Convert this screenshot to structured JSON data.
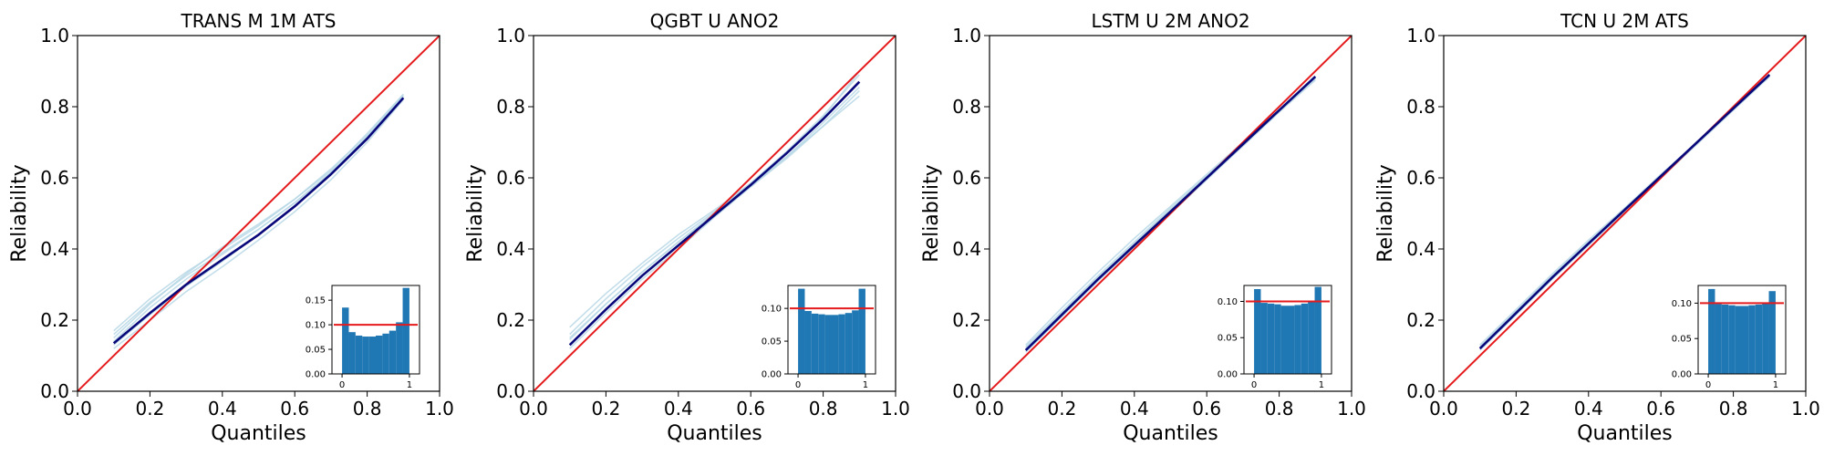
{
  "chart_data": [
    {
      "type": "line",
      "title": "TRANS M 1M ATS",
      "xlabel": "Quantiles",
      "ylabel": "Reliability",
      "xlim": [
        0,
        1
      ],
      "ylim": [
        0,
        1
      ],
      "xticks": [
        0.0,
        0.2,
        0.4,
        0.6,
        0.8,
        1.0
      ],
      "yticks": [
        0.0,
        0.2,
        0.4,
        0.6,
        0.8,
        1.0
      ],
      "xtick_labels": [
        "0.0",
        "0.2",
        "0.4",
        "0.6",
        "0.8",
        "1.0"
      ],
      "ytick_labels": [
        "0.0",
        "0.2",
        "0.4",
        "0.6",
        "0.8",
        "1.0"
      ],
      "diagonal": {
        "x": [
          0,
          1
        ],
        "y": [
          0,
          1
        ],
        "color": "#e41a1c"
      },
      "x": [
        0.1,
        0.2,
        0.3,
        0.4,
        0.5,
        0.6,
        0.7,
        0.8,
        0.9
      ],
      "series": [
        {
          "values": [
            0.135,
            0.22,
            0.3,
            0.37,
            0.44,
            0.52,
            0.61,
            0.71,
            0.825
          ],
          "color": "#08087a",
          "role": "mean"
        },
        {
          "values": [
            0.15,
            0.245,
            0.33,
            0.405,
            0.47,
            0.54,
            0.62,
            0.725,
            0.835
          ],
          "color": "#b9d8e6",
          "role": "run"
        },
        {
          "values": [
            0.16,
            0.25,
            0.325,
            0.39,
            0.455,
            0.53,
            0.615,
            0.715,
            0.83
          ],
          "color": "#b9d8e6",
          "role": "run"
        },
        {
          "values": [
            0.12,
            0.2,
            0.28,
            0.35,
            0.425,
            0.505,
            0.595,
            0.7,
            0.82
          ],
          "color": "#b9d8e6",
          "role": "run"
        },
        {
          "values": [
            0.14,
            0.235,
            0.315,
            0.385,
            0.455,
            0.53,
            0.615,
            0.715,
            0.83
          ],
          "color": "#b9d8e6",
          "role": "run"
        },
        {
          "values": [
            0.13,
            0.215,
            0.295,
            0.365,
            0.44,
            0.52,
            0.61,
            0.71,
            0.825
          ],
          "color": "#b9d8e6",
          "role": "run"
        },
        {
          "values": [
            0.17,
            0.26,
            0.335,
            0.4,
            0.465,
            0.54,
            0.625,
            0.72,
            0.835
          ],
          "color": "#b9d8e6",
          "role": "run"
        }
      ],
      "inset": {
        "type": "histogram",
        "bins": 10,
        "bar_color": "#1f77b4",
        "values": [
          0.135,
          0.085,
          0.078,
          0.076,
          0.076,
          0.078,
          0.082,
          0.088,
          0.105,
          0.175
        ],
        "ylim": [
          0,
          0.18
        ],
        "reference": 0.1,
        "yticks": [
          0.0,
          0.05,
          0.1,
          0.15
        ],
        "ytick_labels": [
          "0.00",
          "0.05",
          "0.10",
          "0.15"
        ],
        "xticks": [
          0,
          1
        ],
        "xtick_labels": [
          "0",
          "1"
        ]
      }
    },
    {
      "type": "line",
      "title": "QGBT U ANO2",
      "xlabel": "Quantiles",
      "ylabel": "Reliability",
      "xlim": [
        0,
        1
      ],
      "ylim": [
        0,
        1
      ],
      "xticks": [
        0.0,
        0.2,
        0.4,
        0.6,
        0.8,
        1.0
      ],
      "yticks": [
        0.0,
        0.2,
        0.4,
        0.6,
        0.8,
        1.0
      ],
      "xtick_labels": [
        "0.0",
        "0.2",
        "0.4",
        "0.6",
        "0.8",
        "1.0"
      ],
      "ytick_labels": [
        "0.0",
        "0.2",
        "0.4",
        "0.6",
        "0.8",
        "1.0"
      ],
      "diagonal": {
        "x": [
          0,
          1
        ],
        "y": [
          0,
          1
        ],
        "color": "#e41a1c"
      },
      "x": [
        0.1,
        0.2,
        0.3,
        0.4,
        0.5,
        0.6,
        0.7,
        0.8,
        0.9
      ],
      "series": [
        {
          "values": [
            0.13,
            0.23,
            0.325,
            0.41,
            0.495,
            0.58,
            0.67,
            0.765,
            0.87
          ],
          "color": "#08087a",
          "role": "mean"
        },
        {
          "values": [
            0.16,
            0.26,
            0.35,
            0.43,
            0.505,
            0.585,
            0.675,
            0.775,
            0.89
          ],
          "color": "#b9d8e6",
          "role": "run"
        },
        {
          "values": [
            0.18,
            0.275,
            0.36,
            0.44,
            0.51,
            0.585,
            0.67,
            0.77,
            0.9
          ],
          "color": "#b9d8e6",
          "role": "run"
        },
        {
          "values": [
            0.145,
            0.245,
            0.335,
            0.42,
            0.5,
            0.575,
            0.655,
            0.745,
            0.845
          ],
          "color": "#b9d8e6",
          "role": "run"
        },
        {
          "values": [
            0.12,
            0.22,
            0.315,
            0.4,
            0.49,
            0.575,
            0.66,
            0.755,
            0.855
          ],
          "color": "#b9d8e6",
          "role": "run"
        },
        {
          "values": [
            0.15,
            0.245,
            0.335,
            0.42,
            0.5,
            0.58,
            0.66,
            0.745,
            0.83
          ],
          "color": "#b9d8e6",
          "role": "run"
        }
      ],
      "inset": {
        "type": "histogram",
        "bins": 10,
        "bar_color": "#1f77b4",
        "values": [
          0.13,
          0.096,
          0.092,
          0.091,
          0.09,
          0.09,
          0.091,
          0.093,
          0.097,
          0.13
        ],
        "ylim": [
          0,
          0.135
        ],
        "reference": 0.1,
        "yticks": [
          0.0,
          0.05,
          0.1
        ],
        "ytick_labels": [
          "0.00",
          "0.05",
          "0.10"
        ],
        "xticks": [
          0,
          1
        ],
        "xtick_labels": [
          "0",
          "1"
        ]
      }
    },
    {
      "type": "line",
      "title": "LSTM U 2M ANO2",
      "xlabel": "Quantiles",
      "ylabel": "Reliability",
      "xlim": [
        0,
        1
      ],
      "ylim": [
        0,
        1
      ],
      "xticks": [
        0.0,
        0.2,
        0.4,
        0.6,
        0.8,
        1.0
      ],
      "yticks": [
        0.0,
        0.2,
        0.4,
        0.6,
        0.8,
        1.0
      ],
      "xtick_labels": [
        "0.0",
        "0.2",
        "0.4",
        "0.6",
        "0.8",
        "1.0"
      ],
      "ytick_labels": [
        "0.0",
        "0.2",
        "0.4",
        "0.6",
        "0.8",
        "1.0"
      ],
      "diagonal": {
        "x": [
          0,
          1
        ],
        "y": [
          0,
          1
        ],
        "color": "#e41a1c"
      },
      "x": [
        0.1,
        0.2,
        0.3,
        0.4,
        0.5,
        0.6,
        0.7,
        0.8,
        0.9
      ],
      "series": [
        {
          "values": [
            0.115,
            0.215,
            0.315,
            0.41,
            0.505,
            0.6,
            0.695,
            0.79,
            0.885
          ],
          "color": "#08087a",
          "role": "mean"
        },
        {
          "values": [
            0.125,
            0.225,
            0.325,
            0.42,
            0.515,
            0.605,
            0.7,
            0.79,
            0.88
          ],
          "color": "#b9d8e6",
          "role": "run"
        },
        {
          "values": [
            0.13,
            0.235,
            0.335,
            0.43,
            0.52,
            0.61,
            0.7,
            0.79,
            0.88
          ],
          "color": "#b9d8e6",
          "role": "run"
        },
        {
          "values": [
            0.12,
            0.22,
            0.32,
            0.415,
            0.51,
            0.6,
            0.69,
            0.785,
            0.875
          ],
          "color": "#b9d8e6",
          "role": "run"
        },
        {
          "values": [
            0.11,
            0.21,
            0.31,
            0.405,
            0.5,
            0.595,
            0.69,
            0.785,
            0.88
          ],
          "color": "#b9d8e6",
          "role": "run"
        }
      ],
      "inset": {
        "type": "histogram",
        "bins": 10,
        "bar_color": "#1f77b4",
        "values": [
          0.117,
          0.098,
          0.097,
          0.096,
          0.094,
          0.094,
          0.095,
          0.097,
          0.099,
          0.12
        ],
        "ylim": [
          0,
          0.122
        ],
        "reference": 0.1,
        "yticks": [
          0.0,
          0.05,
          0.1
        ],
        "ytick_labels": [
          "0.00",
          "0.05",
          "0.10"
        ],
        "xticks": [
          0,
          1
        ],
        "xtick_labels": [
          "0",
          "1"
        ]
      }
    },
    {
      "type": "line",
      "title": "TCN U 2M ATS",
      "xlabel": "Quantiles",
      "ylabel": "Reliability",
      "xlim": [
        0,
        1
      ],
      "ylim": [
        0,
        1
      ],
      "xticks": [
        0.0,
        0.2,
        0.4,
        0.6,
        0.8,
        1.0
      ],
      "yticks": [
        0.0,
        0.2,
        0.4,
        0.6,
        0.8,
        1.0
      ],
      "xtick_labels": [
        "0.0",
        "0.2",
        "0.4",
        "0.6",
        "0.8",
        "1.0"
      ],
      "ytick_labels": [
        "0.0",
        "0.2",
        "0.4",
        "0.6",
        "0.8",
        "1.0"
      ],
      "diagonal": {
        "x": [
          0,
          1
        ],
        "y": [
          0,
          1
        ],
        "color": "#e41a1c"
      },
      "x": [
        0.1,
        0.2,
        0.3,
        0.4,
        0.5,
        0.6,
        0.7,
        0.8,
        0.9
      ],
      "series": [
        {
          "values": [
            0.12,
            0.22,
            0.32,
            0.415,
            0.51,
            0.605,
            0.7,
            0.795,
            0.89
          ],
          "color": "#08087a",
          "role": "mean"
        },
        {
          "values": [
            0.13,
            0.23,
            0.33,
            0.425,
            0.515,
            0.61,
            0.7,
            0.795,
            0.885
          ],
          "color": "#b9d8e6",
          "role": "run"
        },
        {
          "values": [
            0.125,
            0.225,
            0.325,
            0.42,
            0.515,
            0.605,
            0.7,
            0.795,
            0.89
          ],
          "color": "#b9d8e6",
          "role": "run"
        },
        {
          "values": [
            0.115,
            0.215,
            0.315,
            0.41,
            0.505,
            0.6,
            0.695,
            0.79,
            0.885
          ],
          "color": "#b9d8e6",
          "role": "run"
        }
      ],
      "inset": {
        "type": "histogram",
        "bins": 10,
        "bar_color": "#1f77b4",
        "values": [
          0.12,
          0.099,
          0.098,
          0.097,
          0.096,
          0.096,
          0.097,
          0.098,
          0.1,
          0.117
        ],
        "ylim": [
          0,
          0.125
        ],
        "reference": 0.1,
        "yticks": [
          0.0,
          0.05,
          0.1
        ],
        "ytick_labels": [
          "0.00",
          "0.05",
          "0.10"
        ],
        "xticks": [
          0,
          1
        ],
        "xtick_labels": [
          "0",
          "1"
        ]
      }
    }
  ]
}
